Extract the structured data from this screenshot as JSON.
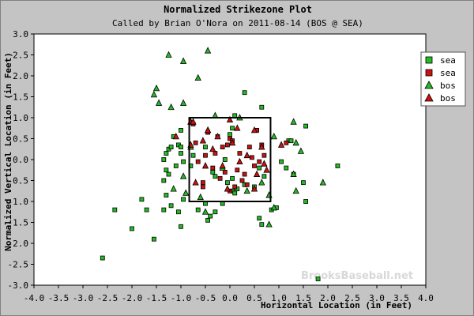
{
  "chart_data": {
    "type": "scatter",
    "title": "Normalized Strikezone Plot",
    "subtitle": "Called by Brian O'Nora on 2011-08-14 (BOS @ SEA)",
    "xlabel": "Horizontal Location (in Feet)",
    "ylabel": "Normalized Vertical Location (in Feet)",
    "xlim": [
      -4.0,
      4.0
    ],
    "ylim": [
      -3.0,
      3.0
    ],
    "xticks": [
      "-4.0",
      "-3.5",
      "-3.0",
      "-2.5",
      "-2.0",
      "-1.5",
      "-1.0",
      "-0.5",
      "0.0",
      "0.5",
      "1.0",
      "1.5",
      "2.0",
      "2.5",
      "3.0",
      "3.5",
      "4.0"
    ],
    "yticks": [
      "-3.0",
      "-2.5",
      "-2.0",
      "-1.5",
      "-1.0",
      "-0.5",
      "0.0",
      "0.5",
      "1.0",
      "1.5",
      "2.0",
      "2.5",
      "3.0"
    ],
    "grid": false,
    "legend_position": "top-right",
    "strike_zone": {
      "x": [
        -0.83,
        0.83
      ],
      "y": [
        -1.0,
        1.0
      ]
    },
    "watermark": "BrooksBaseball.net",
    "series": [
      {
        "name": "sea",
        "marker": "square",
        "color": "#22bb22",
        "points": [
          [
            -2.6,
            -2.35
          ],
          [
            -2.35,
            -1.2
          ],
          [
            -2.0,
            -1.65
          ],
          [
            -1.8,
            -0.95
          ],
          [
            -1.7,
            -1.2
          ],
          [
            -1.55,
            -1.9
          ],
          [
            -1.35,
            -1.2
          ],
          [
            -1.3,
            -0.85
          ],
          [
            -1.2,
            -1.1
          ],
          [
            -1.05,
            -1.25
          ],
          [
            -1.0,
            -1.6
          ],
          [
            -0.95,
            -0.95
          ],
          [
            -0.65,
            -1.2
          ],
          [
            -0.5,
            -1.05
          ],
          [
            -0.45,
            -1.45
          ],
          [
            -0.4,
            -1.35
          ],
          [
            -0.3,
            -1.25
          ],
          [
            -0.15,
            -1.05
          ],
          [
            -0.05,
            -0.55
          ],
          [
            0.05,
            -0.75
          ],
          [
            0.1,
            -0.8
          ],
          [
            0.15,
            -0.7
          ],
          [
            0.5,
            -0.65
          ],
          [
            0.6,
            -1.4
          ],
          [
            0.65,
            -1.55
          ],
          [
            0.85,
            -1.2
          ],
          [
            0.95,
            -1.15
          ],
          [
            1.8,
            -2.85
          ],
          [
            -1.35,
            0.0
          ],
          [
            -1.3,
            -0.25
          ],
          [
            -1.35,
            -0.5
          ],
          [
            -1.25,
            -0.35
          ],
          [
            -1.3,
            0.15
          ],
          [
            -1.25,
            0.25
          ],
          [
            -1.2,
            0.3
          ],
          [
            -1.1,
            -0.15
          ],
          [
            -1.05,
            0.35
          ],
          [
            -1.0,
            0.3
          ],
          [
            -1.0,
            0.15
          ],
          [
            -0.95,
            -0.05
          ],
          [
            -0.8,
            -0.15
          ],
          [
            -0.75,
            0.1
          ],
          [
            -1.15,
            0.55
          ],
          [
            -1.0,
            0.7
          ],
          [
            -0.5,
            0.3
          ],
          [
            0.0,
            0.6
          ],
          [
            0.05,
            0.75
          ],
          [
            0.1,
            1.05
          ],
          [
            0.3,
            1.6
          ],
          [
            0.65,
            1.25
          ],
          [
            -0.35,
            -0.3
          ],
          [
            -0.1,
            0.0
          ],
          [
            0.05,
            -0.45
          ],
          [
            0.6,
            -0.2
          ],
          [
            0.7,
            -0.4
          ],
          [
            1.05,
            -0.05
          ],
          [
            1.15,
            -0.2
          ],
          [
            1.2,
            0.45
          ],
          [
            1.25,
            0.45
          ],
          [
            1.3,
            -0.35
          ],
          [
            1.55,
            0.8
          ],
          [
            1.5,
            -0.55
          ],
          [
            1.55,
            -1.0
          ],
          [
            2.2,
            -0.15
          ],
          [
            -0.3,
            -0.4
          ],
          [
            0.3,
            -0.6
          ]
        ]
      },
      {
        "name": "sea",
        "marker": "square",
        "color": "#cc1111",
        "points": [
          [
            -0.75,
            0.85
          ],
          [
            -0.7,
            0.4
          ],
          [
            -0.65,
            -0.05
          ],
          [
            -0.55,
            -0.55
          ],
          [
            -0.5,
            0.1
          ],
          [
            -0.45,
            0.65
          ],
          [
            -0.35,
            -0.2
          ],
          [
            -0.25,
            0.55
          ],
          [
            -0.2,
            -0.45
          ],
          [
            -0.15,
            0.3
          ],
          [
            -0.1,
            -0.3
          ],
          [
            -0.05,
            0.35
          ],
          [
            0.0,
            0.5
          ],
          [
            0.05,
            0.45
          ],
          [
            0.1,
            -0.65
          ],
          [
            0.15,
            -0.25
          ],
          [
            0.2,
            0.15
          ],
          [
            0.3,
            -0.35
          ],
          [
            0.35,
            -0.6
          ],
          [
            0.4,
            0.3
          ],
          [
            0.45,
            0.05
          ],
          [
            0.5,
            -0.15
          ],
          [
            0.55,
            0.7
          ],
          [
            0.6,
            -0.05
          ],
          [
            0.65,
            0.35
          ],
          [
            0.7,
            0.1
          ],
          [
            -0.55,
            -0.65
          ],
          [
            0.0,
            -0.75
          ],
          [
            -0.3,
            0.15
          ],
          [
            0.25,
            -0.5
          ],
          [
            1.15,
            0.4
          ]
        ]
      },
      {
        "name": "bos",
        "marker": "triangle",
        "color": "#22bb22",
        "points": [
          [
            -1.25,
            2.5
          ],
          [
            -0.95,
            2.35
          ],
          [
            -0.45,
            2.6
          ],
          [
            -0.65,
            1.95
          ],
          [
            -1.5,
            1.7
          ],
          [
            -1.55,
            1.55
          ],
          [
            -1.45,
            1.35
          ],
          [
            -1.2,
            1.25
          ],
          [
            -0.95,
            1.35
          ],
          [
            -0.8,
            0.9
          ],
          [
            -0.45,
            0.7
          ],
          [
            -0.3,
            1.05
          ],
          [
            0.2,
            1.0
          ],
          [
            1.3,
            0.9
          ],
          [
            1.35,
            0.4
          ],
          [
            1.45,
            0.2
          ],
          [
            1.3,
            -0.35
          ],
          [
            1.35,
            -0.75
          ],
          [
            1.9,
            -0.55
          ],
          [
            -1.15,
            -0.7
          ],
          [
            -0.95,
            -0.4
          ],
          [
            -0.9,
            -0.8
          ],
          [
            -0.6,
            -0.9
          ],
          [
            -0.5,
            -1.25
          ],
          [
            0.35,
            -0.75
          ],
          [
            0.8,
            -0.85
          ],
          [
            0.9,
            -1.15
          ],
          [
            0.8,
            -1.55
          ],
          [
            -0.8,
            0.3
          ],
          [
            0.9,
            0.55
          ],
          [
            -0.15,
            -0.2
          ],
          [
            0.65,
            -0.55
          ]
        ]
      },
      {
        "name": "bos",
        "marker": "triangle",
        "color": "#cc1111",
        "points": [
          [
            -0.8,
            0.9
          ],
          [
            -0.75,
            0.9
          ],
          [
            -1.1,
            0.55
          ],
          [
            -0.8,
            0.35
          ],
          [
            -0.55,
            0.45
          ],
          [
            -0.45,
            0.7
          ],
          [
            -0.35,
            0.25
          ],
          [
            -0.25,
            0.55
          ],
          [
            -0.5,
            -0.15
          ],
          [
            -0.15,
            -0.15
          ],
          [
            0.0,
            0.95
          ],
          [
            0.05,
            0.4
          ],
          [
            0.15,
            0.75
          ],
          [
            0.2,
            -0.05
          ],
          [
            0.35,
            0.1
          ],
          [
            0.5,
            0.7
          ],
          [
            0.55,
            -0.35
          ],
          [
            0.65,
            0.3
          ],
          [
            0.7,
            -0.1
          ],
          [
            0.75,
            -0.25
          ],
          [
            -0.05,
            -0.7
          ],
          [
            -0.7,
            -0.55
          ],
          [
            1.05,
            0.35
          ],
          [
            0.5,
            -0.7
          ]
        ]
      }
    ]
  }
}
